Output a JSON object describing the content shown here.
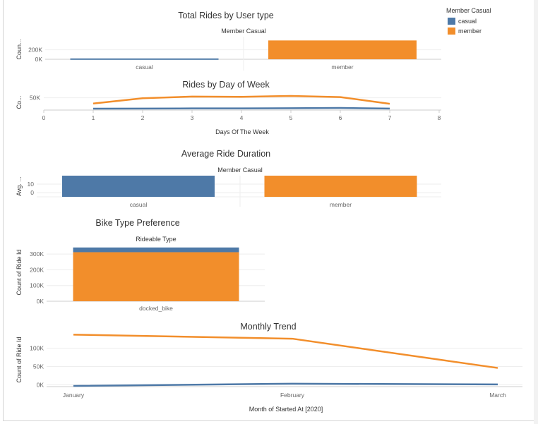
{
  "colors": {
    "casual": "#4e79a7",
    "member": "#f28e2b",
    "grid": "#eeeeee",
    "axis": "#cccccc"
  },
  "legend": {
    "title": "Member Casual",
    "items": [
      {
        "label": "casual",
        "color": "#4e79a7"
      },
      {
        "label": "member",
        "color": "#f28e2b"
      }
    ]
  },
  "chart_data": [
    {
      "id": "user-type",
      "type": "bar",
      "title": "Total Rides by User type",
      "header": "Member Casual",
      "ylabel": "Coun...",
      "categories": [
        "casual",
        "member"
      ],
      "values": [
        18000,
        400000
      ],
      "yticks": [
        {
          "v": 0,
          "label": "0K"
        },
        {
          "v": 200000,
          "label": "200K"
        }
      ],
      "ylim": [
        0,
        420000
      ]
    },
    {
      "id": "day-of-week",
      "type": "line",
      "title": "Rides by Day of Week",
      "ylabel": "Co...",
      "xlabel": "Days Of The Week",
      "x": [
        1,
        2,
        3,
        4,
        5,
        6,
        7
      ],
      "xticks": [
        0,
        1,
        2,
        3,
        4,
        5,
        6,
        7,
        8
      ],
      "xlim": [
        0,
        8
      ],
      "yticks": [
        {
          "v": 50000,
          "label": "50K"
        }
      ],
      "ylim": [
        0,
        70000
      ],
      "series": [
        {
          "name": "member",
          "values": [
            25000,
            48000,
            55000,
            54000,
            58000,
            53000,
            24000
          ]
        },
        {
          "name": "casual",
          "values": [
            3000,
            3500,
            4000,
            4000,
            5000,
            6000,
            3500
          ]
        }
      ]
    },
    {
      "id": "avg-duration",
      "type": "bar",
      "title": "Average Ride Duration",
      "header": "Member Casual",
      "ylabel": "Avg. ...",
      "categories": [
        "casual",
        "member"
      ],
      "values": [
        20,
        20
      ],
      "yticks": [
        {
          "v": 0,
          "label": "0"
        },
        {
          "v": 10,
          "label": "10"
        }
      ],
      "ylim": [
        -5,
        20
      ]
    },
    {
      "id": "bike-type",
      "type": "bar",
      "title": "Bike Type Preference",
      "header": "Rideable Type",
      "ylabel": "Count of Ride Id",
      "categories": [
        "docked_bike"
      ],
      "series": [
        {
          "name": "member",
          "values": [
            312000
          ]
        },
        {
          "name": "casual",
          "values": [
            30000
          ]
        }
      ],
      "yticks": [
        {
          "v": 0,
          "label": "0K"
        },
        {
          "v": 100000,
          "label": "100K"
        },
        {
          "v": 200000,
          "label": "200K"
        },
        {
          "v": 300000,
          "label": "300K"
        }
      ],
      "ylim": [
        0,
        350000
      ]
    },
    {
      "id": "monthly",
      "type": "line",
      "title": "Monthly Trend",
      "ylabel": "Count of Ride Id",
      "xlabel": "Month of Started At [2020]",
      "categories": [
        "January",
        "February",
        "March"
      ],
      "yticks": [
        {
          "v": 0,
          "label": "0K"
        },
        {
          "v": 50000,
          "label": "50K"
        },
        {
          "v": 100000,
          "label": "100K"
        }
      ],
      "ylim": [
        -5000,
        130000
      ],
      "series": [
        {
          "name": "member",
          "values": [
            137000,
            126000,
            46000
          ]
        },
        {
          "name": "casual",
          "values": [
            -3000,
            3000,
            1000
          ]
        }
      ]
    }
  ]
}
